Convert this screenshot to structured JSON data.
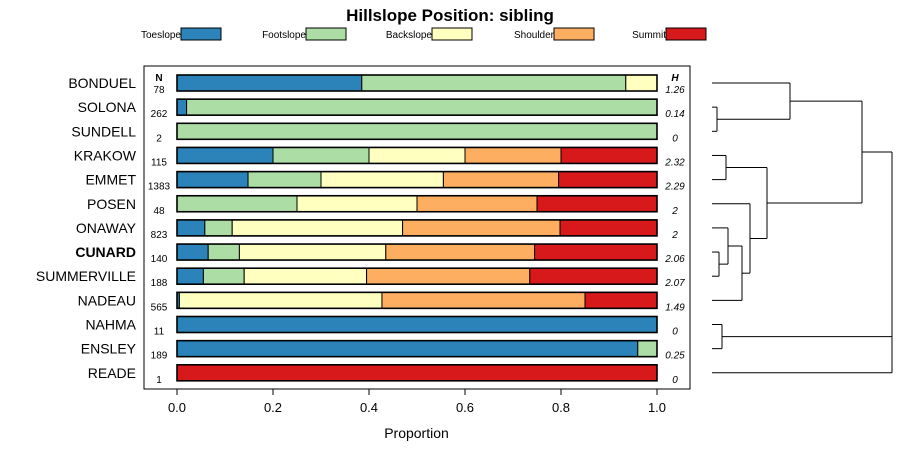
{
  "chart_data": {
    "type": "bar",
    "orientation": "horizontal",
    "stacked": true,
    "title": "Hillslope Position: sibling",
    "xlabel": "Proportion",
    "xlim": [
      0,
      1
    ],
    "x_ticks": [
      "0.0",
      "0.2",
      "0.4",
      "0.6",
      "0.8",
      "1.0"
    ],
    "x_tick_values": [
      0,
      0.2,
      0.4,
      0.6,
      0.8,
      1.0
    ],
    "n_header": "N",
    "h_header": "H",
    "legend_position": "top",
    "highlighted_category": "CUNARD",
    "series": [
      {
        "name": "Toeslope",
        "color": "#2b83ba"
      },
      {
        "name": "Footslope",
        "color": "#abdda4"
      },
      {
        "name": "Backslope",
        "color": "#ffffbf"
      },
      {
        "name": "Shoulder",
        "color": "#fdae61"
      },
      {
        "name": "Summit",
        "color": "#d7191c"
      }
    ],
    "categories": [
      "BONDUEL",
      "SOLONA",
      "SUNDELL",
      "KRAKOW",
      "EMMET",
      "POSEN",
      "ONAWAY",
      "CUNARD",
      "SUMMERVILLE",
      "NADEAU",
      "NAHMA",
      "ENSLEY",
      "READE"
    ],
    "n": [
      "78",
      "262",
      "2",
      "115",
      "1383",
      "48",
      "823",
      "140",
      "188",
      "565",
      "11",
      "189",
      "1"
    ],
    "h": [
      "1.26",
      "0.14",
      "0",
      "2.32",
      "2.29",
      "2",
      "2",
      "2.06",
      "2.07",
      "1.49",
      "0",
      "0.25",
      "0"
    ],
    "values": [
      [
        0.385,
        0.55,
        0.065,
        0,
        0
      ],
      [
        0.02,
        0.98,
        0,
        0,
        0
      ],
      [
        0,
        1.0,
        0,
        0,
        0
      ],
      [
        0.2,
        0.2,
        0.2,
        0.2,
        0.2
      ],
      [
        0.148,
        0.152,
        0.255,
        0.24,
        0.205
      ],
      [
        0,
        0.25,
        0.25,
        0.25,
        0.25
      ],
      [
        0.058,
        0.057,
        0.355,
        0.328,
        0.202
      ],
      [
        0.065,
        0.065,
        0.305,
        0.31,
        0.255
      ],
      [
        0.055,
        0.085,
        0.255,
        0.34,
        0.265
      ],
      [
        0.005,
        0,
        0.422,
        0.423,
        0.15
      ],
      [
        1.0,
        0,
        0,
        0,
        0
      ],
      [
        0.96,
        0.04,
        0,
        0,
        0
      ],
      [
        0,
        0,
        0,
        0,
        1.0
      ]
    ]
  }
}
